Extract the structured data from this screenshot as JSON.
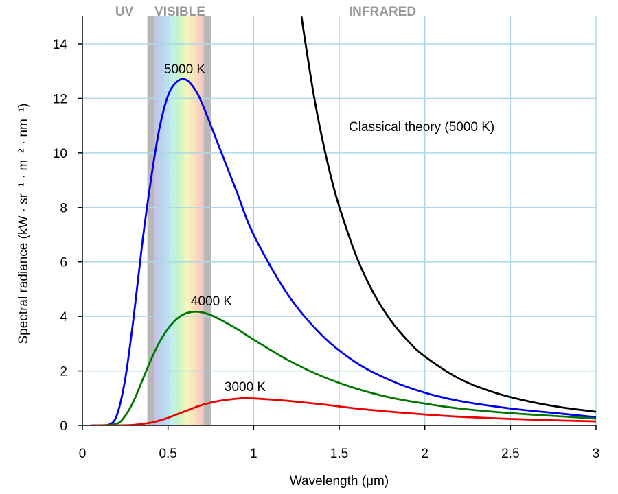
{
  "chart_data": {
    "type": "line",
    "xlabel": "Wavelength (μm)",
    "ylabel": "Spectral radiance (kW · sr⁻¹ · m⁻² · nm⁻¹)",
    "xlim": [
      0,
      3
    ],
    "ylim": [
      0,
      15
    ],
    "x_ticks": [
      0,
      0.5,
      1,
      1.5,
      2,
      2.5,
      3
    ],
    "x_tick_labels": [
      "0",
      "0.5",
      "1",
      "1.5",
      "2",
      "2.5",
      "3"
    ],
    "y_ticks": [
      0,
      2,
      4,
      6,
      8,
      10,
      12,
      14
    ],
    "y_tick_labels": [
      "0",
      "2",
      "4",
      "6",
      "8",
      "10",
      "12",
      "14"
    ],
    "grid": true,
    "regions": [
      {
        "label": "UV"
      },
      {
        "label": "VISIBLE",
        "x_range": [
          0.38,
          0.75
        ]
      },
      {
        "label": "INFRARED"
      }
    ],
    "series": [
      {
        "name": "5000 K",
        "color": "#0000ee",
        "x": [
          0.05,
          0.1,
          0.15,
          0.2,
          0.25,
          0.3,
          0.35,
          0.4,
          0.45,
          0.5,
          0.55,
          0.6,
          0.65,
          0.7,
          0.8,
          0.9,
          1.0,
          1.2,
          1.4,
          1.6,
          1.8,
          2.0,
          2.2,
          2.5,
          2.8,
          3.0
        ],
        "y": [
          0,
          0,
          0.01,
          0.35,
          1.7,
          4.0,
          6.7,
          9.0,
          10.9,
          12.1,
          12.6,
          12.7,
          12.4,
          11.8,
          10.2,
          8.6,
          7.0,
          4.8,
          3.3,
          2.3,
          1.65,
          1.2,
          0.9,
          0.62,
          0.43,
          0.3
        ]
      },
      {
        "name": "4000 K",
        "color": "#007700",
        "x": [
          0.05,
          0.1,
          0.2,
          0.25,
          0.3,
          0.35,
          0.4,
          0.45,
          0.5,
          0.55,
          0.6,
          0.65,
          0.7,
          0.75,
          0.8,
          0.9,
          1.0,
          1.2,
          1.4,
          1.6,
          1.8,
          2.0,
          2.2,
          2.5,
          2.8,
          3.0
        ],
        "y": [
          0,
          0,
          0.06,
          0.35,
          0.9,
          1.65,
          2.4,
          3.05,
          3.55,
          3.9,
          4.1,
          4.17,
          4.15,
          4.05,
          3.9,
          3.55,
          3.15,
          2.4,
          1.8,
          1.35,
          1.02,
          0.8,
          0.62,
          0.45,
          0.33,
          0.25
        ]
      },
      {
        "name": "3000 K",
        "color": "#ee0000",
        "x": [
          0.05,
          0.2,
          0.3,
          0.4,
          0.45,
          0.5,
          0.6,
          0.7,
          0.8,
          0.9,
          0.95,
          1.0,
          1.1,
          1.2,
          1.4,
          1.6,
          1.8,
          2.0,
          2.2,
          2.5,
          2.8,
          3.0
        ],
        "y": [
          0,
          0,
          0.02,
          0.1,
          0.18,
          0.28,
          0.52,
          0.75,
          0.9,
          0.98,
          1.0,
          0.99,
          0.95,
          0.9,
          0.77,
          0.62,
          0.5,
          0.4,
          0.32,
          0.24,
          0.18,
          0.15
        ]
      },
      {
        "name": "Classical theory (5000 K)",
        "color": "#000000",
        "x": [
          1.28,
          1.3,
          1.35,
          1.4,
          1.45,
          1.5,
          1.6,
          1.7,
          1.8,
          1.9,
          2.0,
          2.2,
          2.4,
          2.6,
          2.8,
          3.0
        ],
        "y": [
          15.0,
          14.15,
          12.17,
          10.54,
          9.17,
          8.03,
          6.21,
          4.86,
          3.86,
          3.11,
          2.53,
          1.72,
          1.22,
          0.89,
          0.66,
          0.5
        ]
      }
    ],
    "annotations": [
      {
        "text": "5000 K",
        "series": "5000 K"
      },
      {
        "text": "4000 K",
        "series": "4000 K"
      },
      {
        "text": "3000 K",
        "series": "3000 K"
      },
      {
        "text": "Classical theory (5000 K)",
        "series": "Classical theory (5000 K)"
      }
    ]
  }
}
